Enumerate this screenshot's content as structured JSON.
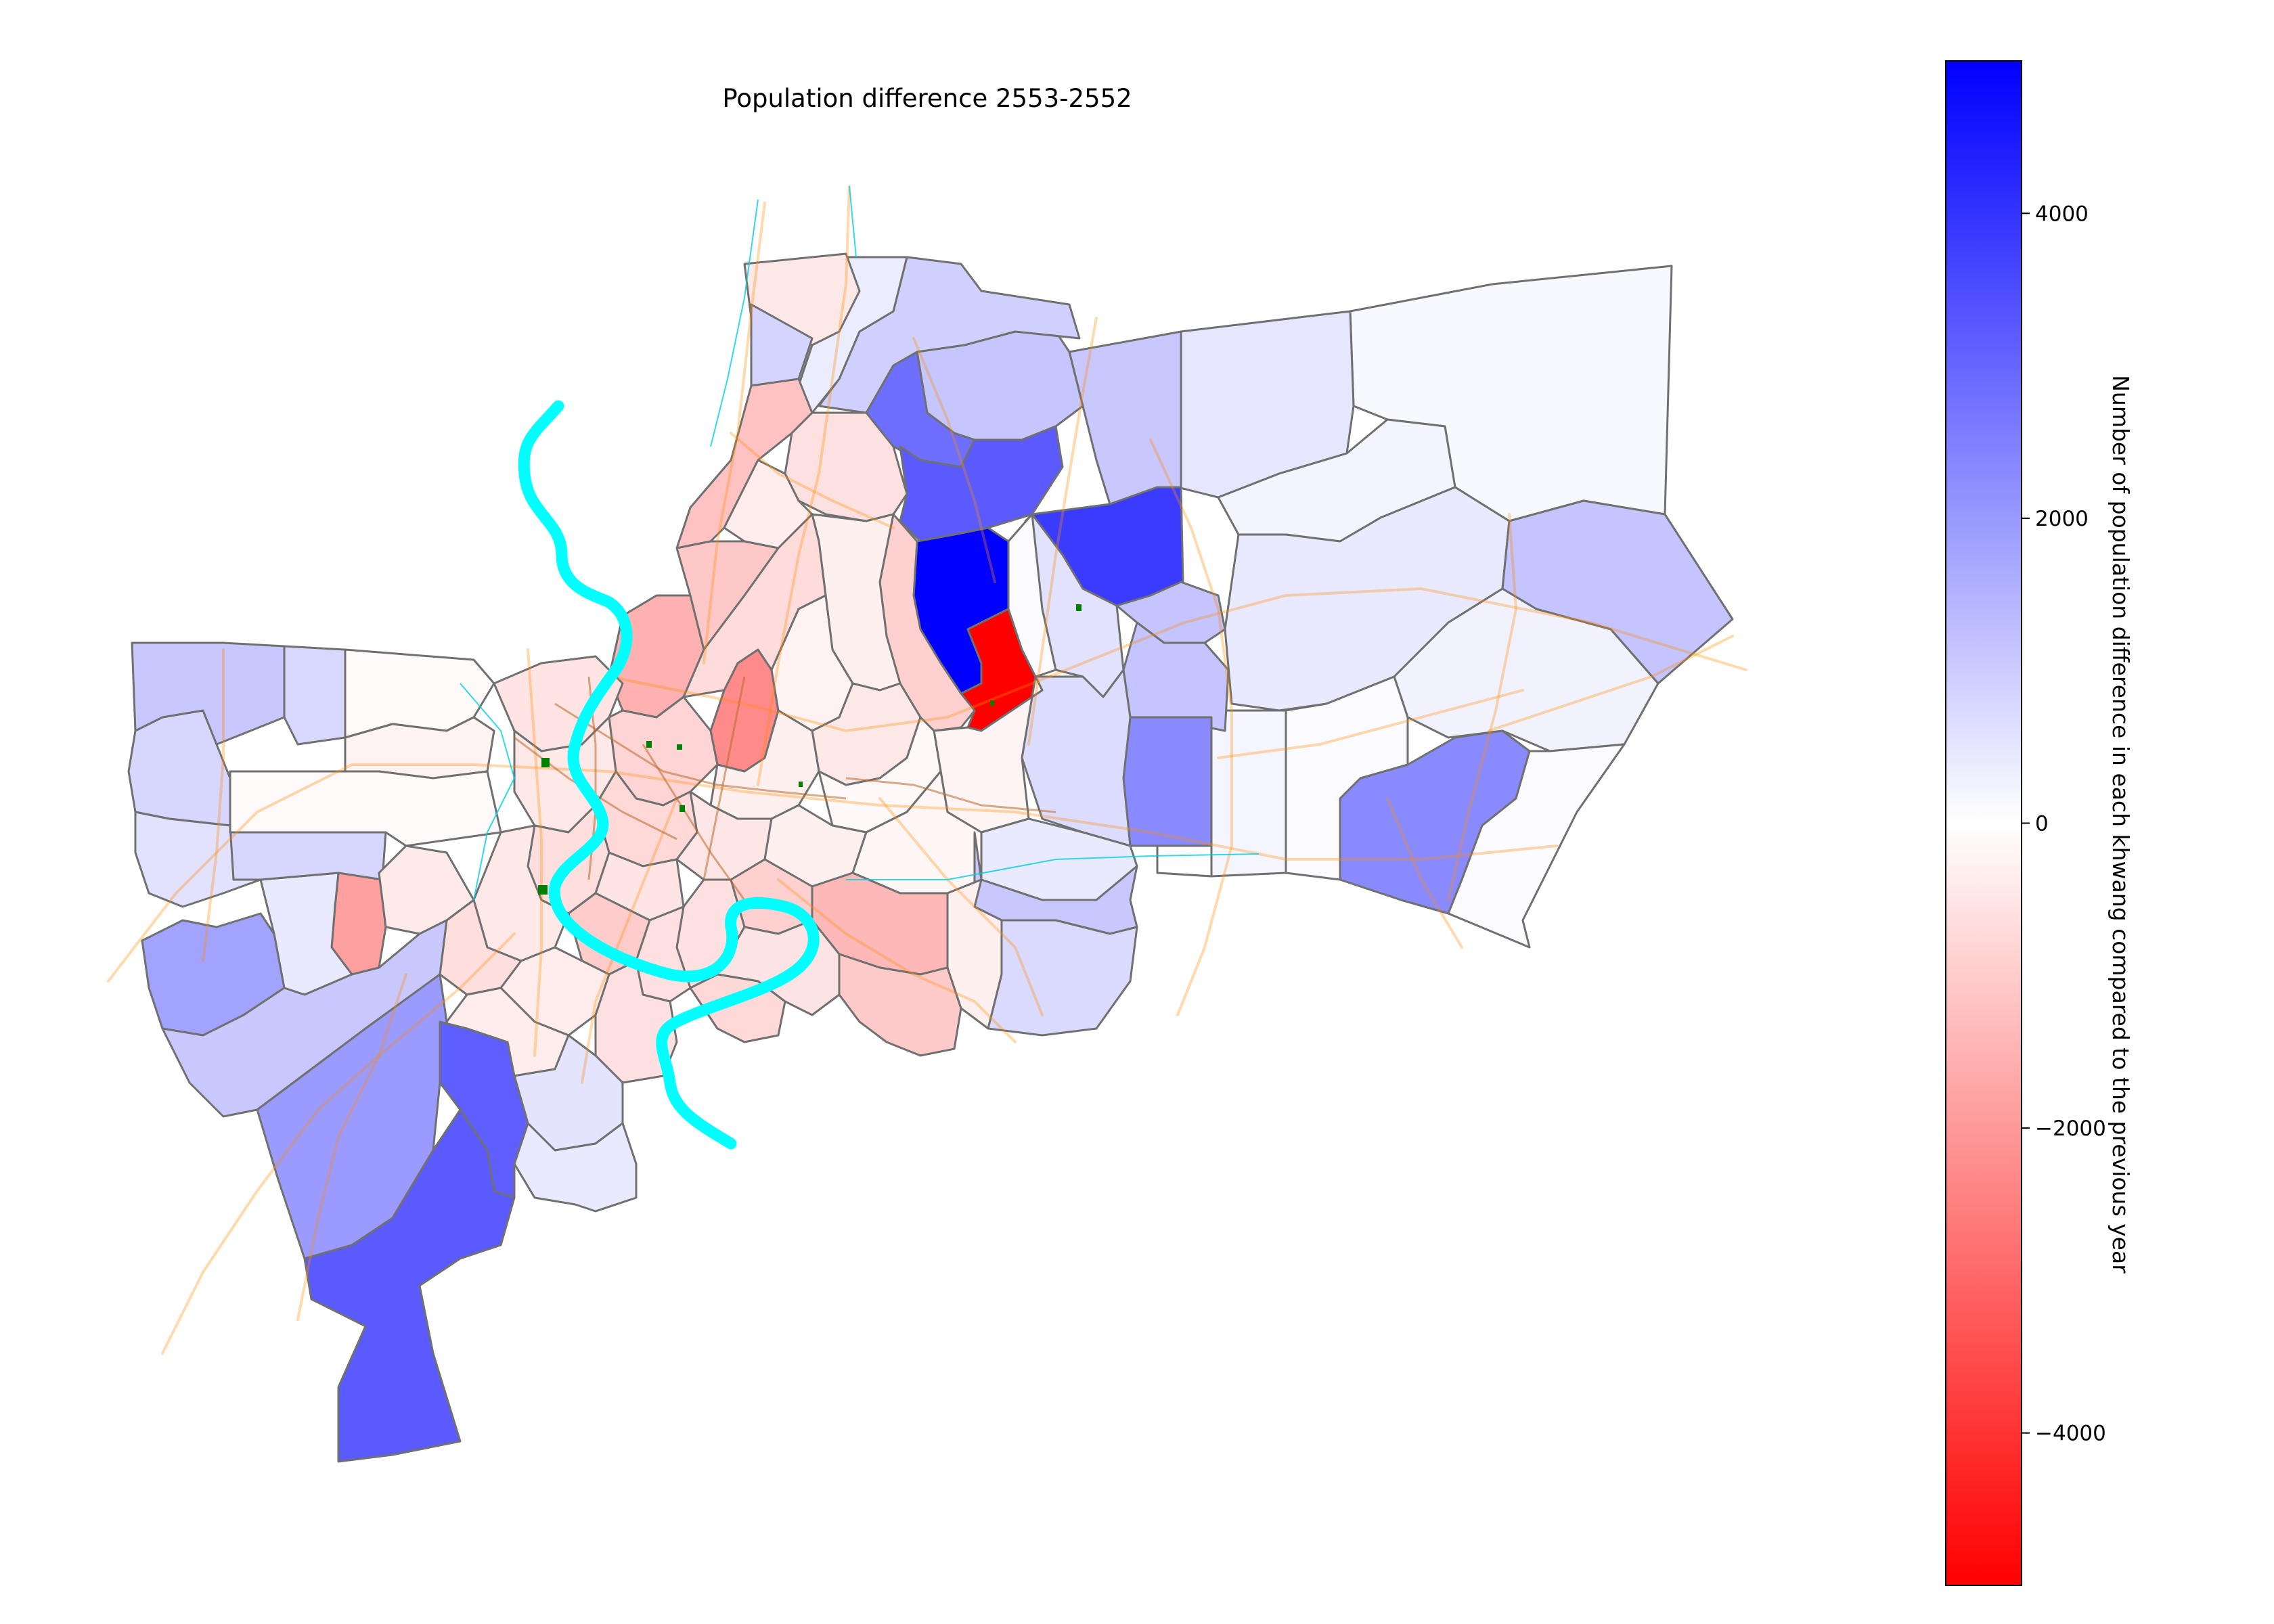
{
  "figure": {
    "title": "Population difference 2553-2552"
  },
  "colorbar": {
    "label": "Number of population difference in each khwang compared to the previous year",
    "vmin": -5000,
    "vmax": 5000,
    "colormap": "bwr_r",
    "color_high": "#0000ff",
    "color_mid": "#ffffff",
    "color_low": "#ff0000",
    "ticks": [
      {
        "value": 4000,
        "label": "4000"
      },
      {
        "value": 2000,
        "label": "2000"
      },
      {
        "value": 0,
        "label": "0"
      },
      {
        "value": -2000,
        "label": "−2000"
      },
      {
        "value": -4000,
        "label": "−4000"
      }
    ]
  },
  "map": {
    "river_color": "#00ffff",
    "road_color": "#ff8c00",
    "boundary_color": "#808080",
    "park_color": "#008000"
  }
}
